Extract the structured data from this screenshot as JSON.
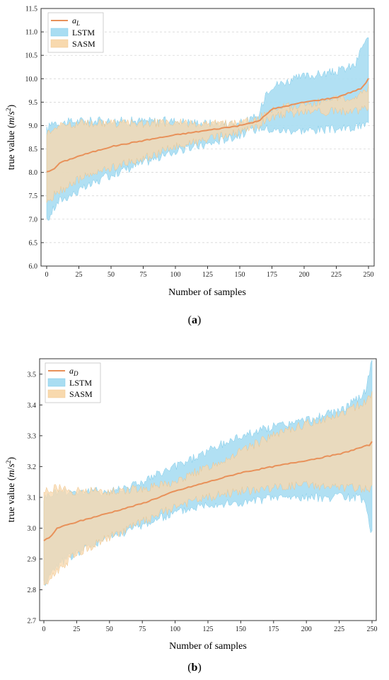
{
  "colors": {
    "mean_line": "#E8915A",
    "lstm_fill": "#A9DDF2",
    "lstm_edge": "#7FCBEA",
    "sasm_fill": "#F8D9AE",
    "sasm_edge": "#EFC48A"
  },
  "chart_data": [
    {
      "type": "area",
      "panel_label": "(a)",
      "ylabel": "true value  (m/s²)",
      "xlabel": "Number of samples",
      "xlim": [
        0,
        250
      ],
      "ylim": [
        6.0,
        11.5
      ],
      "x_ticks": [
        0,
        25,
        50,
        75,
        100,
        125,
        150,
        175,
        200,
        225,
        250
      ],
      "y_ticks": [
        "6.0",
        "6.5",
        "7.0",
        "7.5",
        "8.0",
        "8.5",
        "9.0",
        "9.5",
        "10.0",
        "10.5",
        "11.0",
        "11.5"
      ],
      "grid": true,
      "legend_position": "top-left",
      "legend": [
        "a_L",
        "LSTM",
        "SASM"
      ],
      "series": [
        {
          "name": "a_L",
          "kind": "line",
          "x": [
            0,
            5,
            10,
            25,
            50,
            75,
            100,
            125,
            150,
            165,
            175,
            200,
            225,
            240,
            245,
            250
          ],
          "values": [
            8.02,
            8.05,
            8.2,
            8.35,
            8.55,
            8.68,
            8.8,
            8.9,
            9.0,
            9.1,
            9.35,
            9.5,
            9.6,
            9.75,
            9.8,
            10.0
          ]
        },
        {
          "name": "LSTM",
          "kind": "band",
          "x": [
            0,
            5,
            10,
            25,
            50,
            75,
            100,
            125,
            150,
            165,
            170,
            175,
            200,
            225,
            240,
            245,
            250
          ],
          "upper": [
            8.9,
            9.1,
            9.05,
            9.1,
            9.1,
            9.1,
            9.1,
            9.05,
            9.05,
            9.2,
            9.7,
            9.85,
            10.05,
            10.15,
            10.3,
            10.7,
            10.85
          ],
          "lower": [
            6.95,
            7.2,
            7.4,
            7.6,
            7.95,
            8.2,
            8.45,
            8.6,
            8.8,
            8.95,
            8.95,
            8.9,
            8.9,
            8.92,
            8.95,
            9.0,
            9.05
          ]
        },
        {
          "name": "SASM",
          "kind": "band",
          "x": [
            0,
            5,
            10,
            25,
            50,
            75,
            100,
            125,
            150,
            165,
            175,
            200,
            225,
            240,
            250
          ],
          "upper": [
            8.85,
            8.95,
            9.0,
            9.05,
            9.05,
            9.05,
            9.05,
            9.05,
            9.05,
            9.15,
            9.35,
            9.45,
            9.55,
            9.65,
            9.8
          ],
          "lower": [
            7.3,
            7.5,
            7.6,
            7.85,
            8.1,
            8.3,
            8.55,
            8.7,
            8.85,
            9.0,
            9.2,
            9.3,
            9.3,
            9.3,
            9.35
          ]
        }
      ]
    },
    {
      "type": "area",
      "panel_label": "(b)",
      "ylabel": "true value  (m/s²)",
      "xlabel": "Number of samples",
      "xlim": [
        0,
        250
      ],
      "ylim": [
        2.7,
        3.55
      ],
      "x_ticks": [
        0,
        25,
        50,
        75,
        100,
        125,
        150,
        175,
        200,
        225,
        250
      ],
      "y_ticks": [
        "2.7",
        "2.8",
        "2.9",
        "3.0",
        "3.1",
        "3.2",
        "3.3",
        "3.4",
        "3.5"
      ],
      "grid": false,
      "legend_position": "top-left",
      "legend": [
        "a_D",
        "LSTM",
        "SASM"
      ],
      "series": [
        {
          "name": "a_D",
          "kind": "line",
          "x": [
            0,
            5,
            10,
            25,
            50,
            75,
            100,
            125,
            150,
            175,
            200,
            225,
            240,
            248,
            250
          ],
          "values": [
            2.96,
            2.97,
            3.0,
            3.02,
            3.05,
            3.08,
            3.12,
            3.15,
            3.18,
            3.2,
            3.22,
            3.24,
            3.26,
            3.27,
            3.28
          ]
        },
        {
          "name": "LSTM",
          "kind": "band",
          "x": [
            0,
            10,
            25,
            50,
            75,
            100,
            125,
            150,
            175,
            200,
            225,
            240,
            245,
            250
          ],
          "upper": [
            3.1,
            3.12,
            3.12,
            3.12,
            3.15,
            3.2,
            3.25,
            3.3,
            3.33,
            3.35,
            3.38,
            3.42,
            3.45,
            3.54
          ],
          "lower": [
            2.82,
            2.88,
            2.92,
            2.97,
            3.01,
            3.05,
            3.08,
            3.08,
            3.1,
            3.1,
            3.1,
            3.1,
            3.08,
            2.98
          ]
        },
        {
          "name": "SASM",
          "kind": "band",
          "x": [
            0,
            10,
            25,
            50,
            75,
            100,
            125,
            150,
            175,
            200,
            225,
            240,
            250
          ],
          "upper": [
            3.12,
            3.13,
            3.12,
            3.12,
            3.13,
            3.15,
            3.2,
            3.25,
            3.3,
            3.34,
            3.37,
            3.4,
            3.43
          ],
          "lower": [
            2.81,
            2.86,
            2.92,
            2.97,
            3.02,
            3.07,
            3.1,
            3.12,
            3.13,
            3.14,
            3.13,
            3.13,
            3.13
          ]
        }
      ]
    }
  ]
}
